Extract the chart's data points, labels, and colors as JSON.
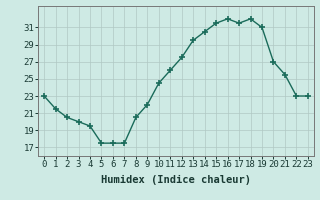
{
  "x": [
    0,
    1,
    2,
    3,
    4,
    5,
    6,
    7,
    8,
    9,
    10,
    11,
    12,
    13,
    14,
    15,
    16,
    17,
    18,
    19,
    20,
    21,
    22,
    23
  ],
  "y": [
    23,
    21.5,
    20.5,
    20,
    19.5,
    17.5,
    17.5,
    17.5,
    20.5,
    22,
    24.5,
    26,
    27.5,
    29.5,
    30.5,
    31.5,
    32,
    31.5,
    32,
    31,
    27,
    25.5,
    23,
    23
  ],
  "xlabel": "Humidex (Indice chaleur)",
  "xlim": [
    -0.5,
    23.5
  ],
  "ylim": [
    16,
    33.5
  ],
  "yticks": [
    17,
    19,
    21,
    23,
    25,
    27,
    29,
    31
  ],
  "xticks": [
    0,
    1,
    2,
    3,
    4,
    5,
    6,
    7,
    8,
    9,
    10,
    11,
    12,
    13,
    14,
    15,
    16,
    17,
    18,
    19,
    20,
    21,
    22,
    23
  ],
  "line_color": "#1a6b5a",
  "marker": "+",
  "marker_size": 5,
  "bg_color": "#ceeae4",
  "grid_color": "#b0c8c4",
  "tick_fontsize": 6.5,
  "xlabel_fontsize": 7.5,
  "line_width": 1.0
}
